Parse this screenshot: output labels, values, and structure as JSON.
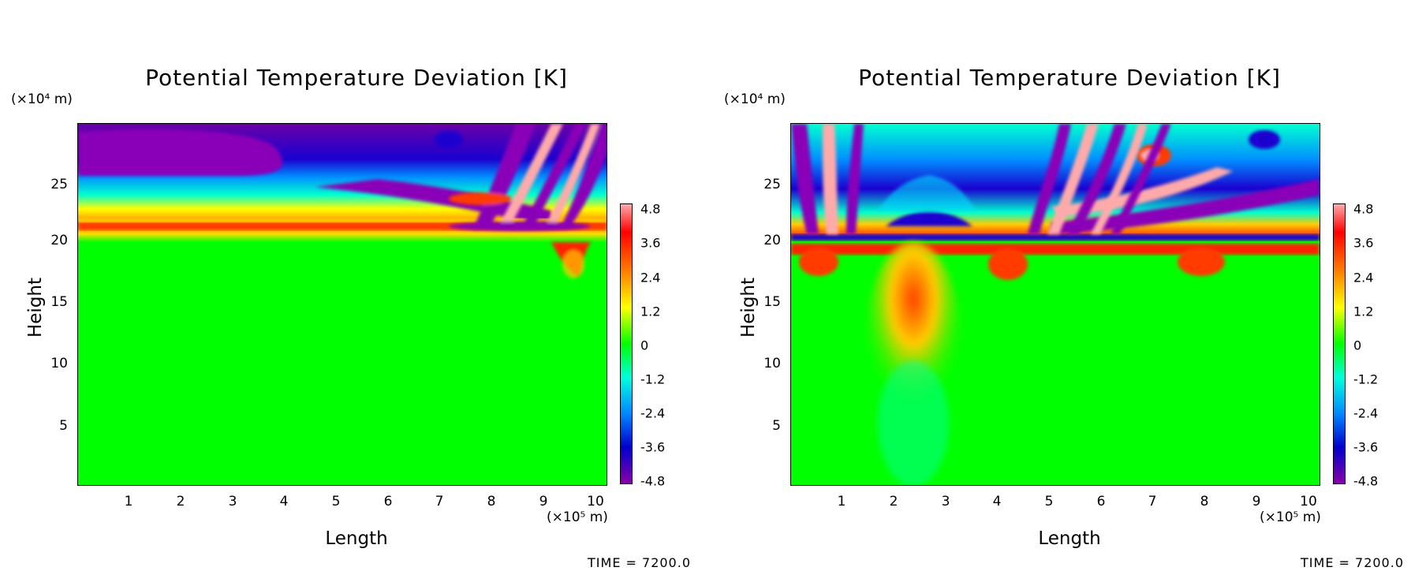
{
  "chart_data": [
    {
      "type": "heatmap",
      "title": "Potential Temperature Deviation [K]",
      "xlabel": "Length",
      "ylabel": "Height",
      "x_unit_label": "(×10⁵ m)",
      "y_unit_label": "(×10⁴ m)",
      "xticks": [
        "1",
        "2",
        "3",
        "4",
        "5",
        "6",
        "7",
        "8",
        "9",
        "10"
      ],
      "yticks": [
        "5",
        "10",
        "15",
        "20",
        "25"
      ],
      "xlim": [
        0,
        10.3
      ],
      "ylim": [
        0,
        29.5
      ],
      "colorbar": {
        "ticks": [
          "4.8",
          "3.6",
          "2.4",
          "1.2",
          "0",
          "-1.2",
          "-2.4",
          "-3.6",
          "-4.8"
        ],
        "range": [
          -4.8,
          4.8
        ]
      },
      "time_label": "TIME = 7200.0",
      "features": "uniform ~0 K field below 20x10^4 m; warm band near 20-21; strong wave pattern aloft; convective plume near x=9.5"
    },
    {
      "type": "heatmap",
      "title": "Potential Temperature Deviation [K]",
      "xlabel": "Length",
      "ylabel": "Height",
      "x_unit_label": "(×10⁵ m)",
      "y_unit_label": "(×10⁴ m)",
      "xticks": [
        "1",
        "2",
        "3",
        "4",
        "5",
        "6",
        "7",
        "8",
        "9",
        "10"
      ],
      "yticks": [
        "5",
        "10",
        "15",
        "20",
        "25"
      ],
      "xlim": [
        0,
        10.3
      ],
      "ylim": [
        0,
        29.5
      ],
      "colorbar": {
        "ticks": [
          "4.8",
          "3.6",
          "2.4",
          "1.2",
          "0",
          "-1.2",
          "-2.4",
          "-3.6",
          "-4.8"
        ],
        "range": [
          -4.8,
          4.8
        ]
      },
      "time_label": "TIME = 7200.0",
      "features": "uniform ~0 K field below 20x10^4 m; convective plume centered near x=2; wave fan centered near x=2.5 aloft"
    }
  ]
}
